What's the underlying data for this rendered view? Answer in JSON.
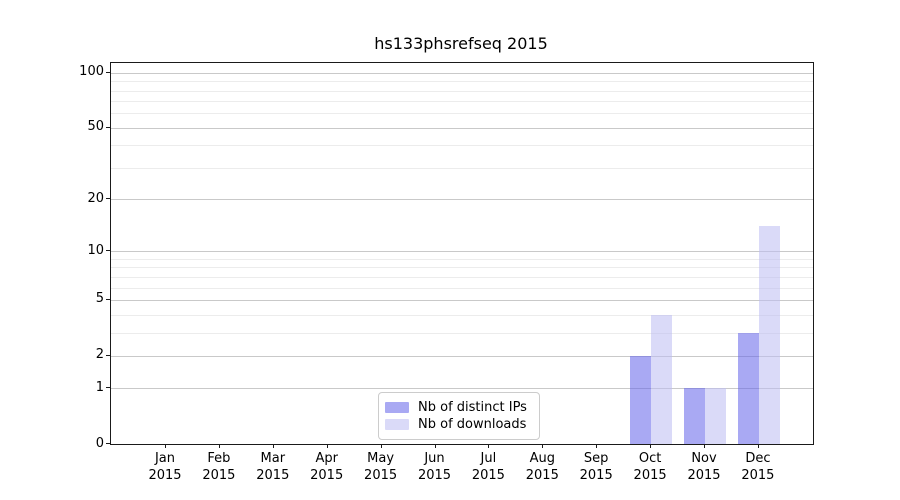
{
  "chart_data": {
    "type": "bar",
    "title": "hs133phsrefseq 2015",
    "categories": [
      {
        "month": "Jan",
        "year": "2015"
      },
      {
        "month": "Feb",
        "year": "2015"
      },
      {
        "month": "Mar",
        "year": "2015"
      },
      {
        "month": "Apr",
        "year": "2015"
      },
      {
        "month": "May",
        "year": "2015"
      },
      {
        "month": "Jun",
        "year": "2015"
      },
      {
        "month": "Jul",
        "year": "2015"
      },
      {
        "month": "Aug",
        "year": "2015"
      },
      {
        "month": "Sep",
        "year": "2015"
      },
      {
        "month": "Oct",
        "year": "2015"
      },
      {
        "month": "Nov",
        "year": "2015"
      },
      {
        "month": "Dec",
        "year": "2015"
      }
    ],
    "series": [
      {
        "name": "Nb of distinct IPs",
        "color": "#a9a9f3",
        "values": [
          0,
          0,
          0,
          0,
          0,
          0,
          0,
          0,
          0,
          2,
          1,
          3
        ]
      },
      {
        "name": "Nb of downloads",
        "color": "#dadaf8",
        "values": [
          0,
          0,
          0,
          0,
          0,
          0,
          0,
          0,
          0,
          4,
          1,
          14
        ]
      }
    ],
    "xlabel": "",
    "ylabel": "",
    "yscale": "log(1+x)",
    "ylim": [
      0,
      113
    ],
    "y_ticks": [
      0,
      1,
      2,
      5,
      10,
      20,
      50,
      100
    ],
    "y_minor_gridlines": [
      3,
      4,
      6,
      7,
      8,
      9,
      30,
      40,
      60,
      70,
      80,
      90
    ],
    "grid": "horizontal",
    "legend_position": "lower center"
  }
}
